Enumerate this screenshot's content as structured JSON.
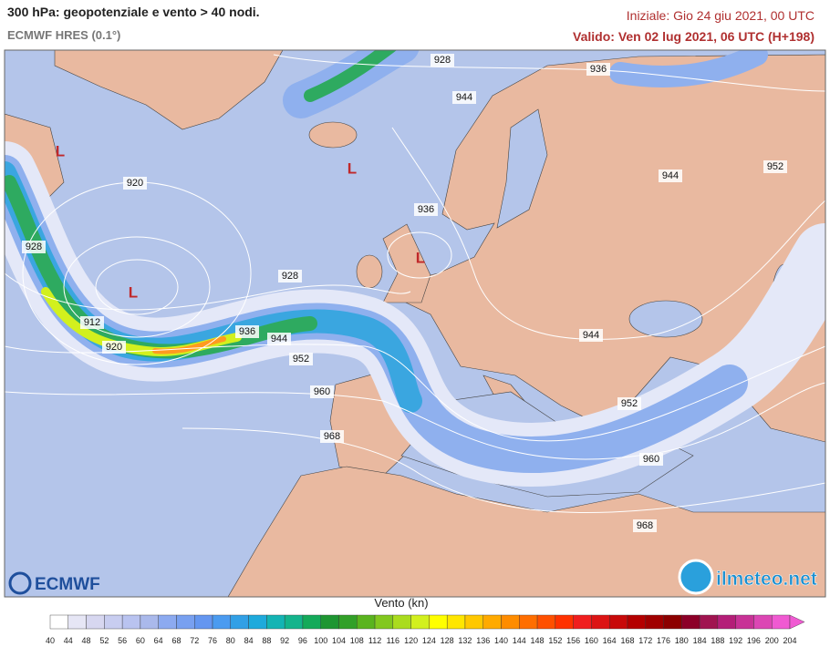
{
  "header": {
    "title": "300 hPa: geopotenziale e vento > 40 nodi.",
    "subtitle": "ECMWF HRES (0.1°)",
    "initial": "Iniziale: Gio 24 giu 2021, 00 UTC",
    "valid": "Valido: Ven 02 lug 2021, 06 UTC (H+198)"
  },
  "map": {
    "contour_labels": [
      928,
      936,
      944,
      920,
      928,
      936,
      944,
      952,
      928,
      912,
      920,
      936,
      944,
      952,
      960,
      968,
      944,
      952,
      960,
      968
    ],
    "lows": [
      "L",
      "L",
      "L",
      "L"
    ]
  },
  "legend": {
    "title": "Vento (kn)",
    "ticks": [
      40,
      44,
      48,
      52,
      56,
      60,
      64,
      68,
      72,
      76,
      80,
      84,
      88,
      92,
      96,
      100,
      104,
      108,
      112,
      116,
      120,
      124,
      128,
      132,
      136,
      140,
      144,
      148,
      152,
      156,
      160,
      164,
      168,
      172,
      176,
      180,
      184,
      188,
      192,
      196,
      200,
      204
    ],
    "colors": [
      "#ffffff",
      "#e6e6f5",
      "#d7d7f0",
      "#c8cdf0",
      "#b9c3f0",
      "#aab9eb",
      "#8caaf0",
      "#78a0f0",
      "#6496f0",
      "#4b9bf0",
      "#32a0e6",
      "#1eaadc",
      "#14b4b4",
      "#14b48c",
      "#14aa5a",
      "#1e9632",
      "#32a028",
      "#5ab41e",
      "#82c81e",
      "#aadc1e",
      "#d2f01e",
      "#ffff00",
      "#ffe600",
      "#ffc800",
      "#ffaa00",
      "#ff8c00",
      "#ff6e00",
      "#ff5000",
      "#ff3200",
      "#f01e1e",
      "#dc1414",
      "#c80a0a",
      "#b40000",
      "#a00000",
      "#8c0000",
      "#8c0028",
      "#a01450",
      "#b41e78",
      "#c83296",
      "#dc46b4",
      "#f05ad2"
    ]
  },
  "logos": {
    "left": "ECMWF",
    "right": "ilmeteo.net"
  }
}
